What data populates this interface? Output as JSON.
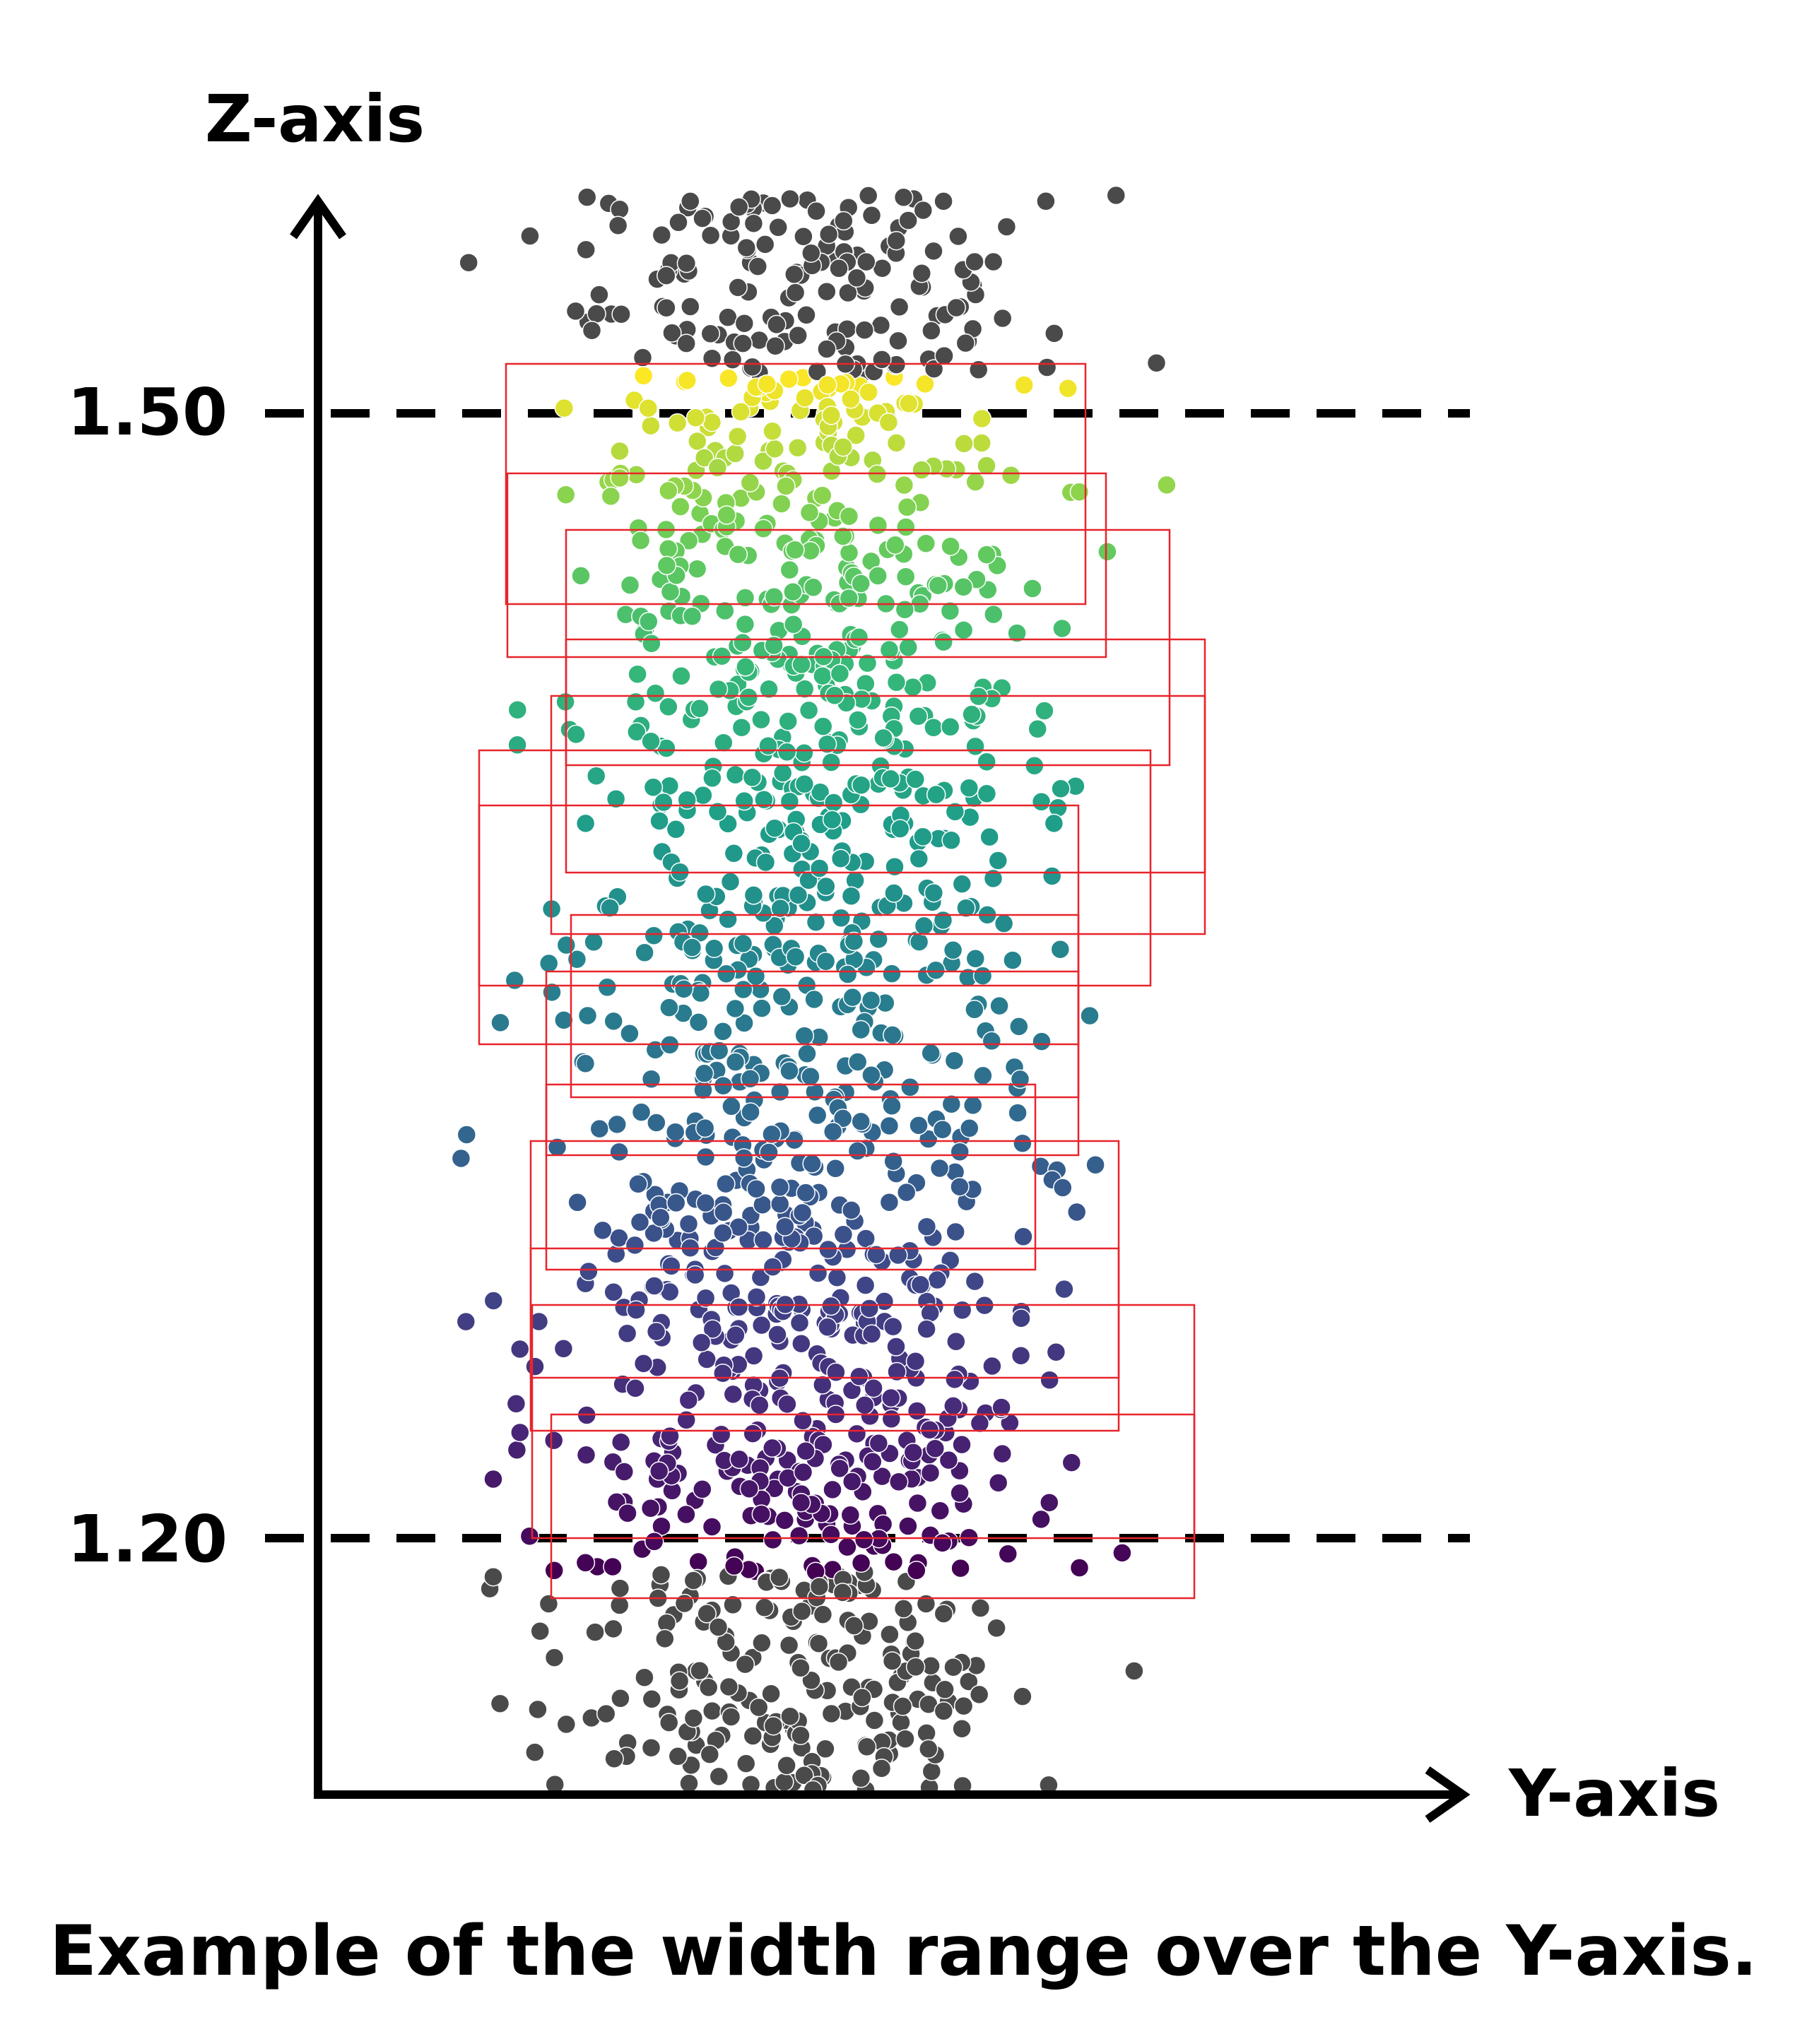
{
  "figure": {
    "z_axis_label": "Z-axis",
    "y_axis_label": "Y-axis",
    "ref_lines": [
      {
        "label": "1.50",
        "z": 1.5
      },
      {
        "label": "1.20",
        "z": 1.2
      }
    ],
    "caption": "Example of the width range over the Y-axis."
  },
  "colors": {
    "axis": "#000000",
    "outside_points": "#4a4a4a",
    "window_box": "#e8242b",
    "viridis_top": "#f2e21b",
    "viridis_bottom": "#440a57"
  }
}
